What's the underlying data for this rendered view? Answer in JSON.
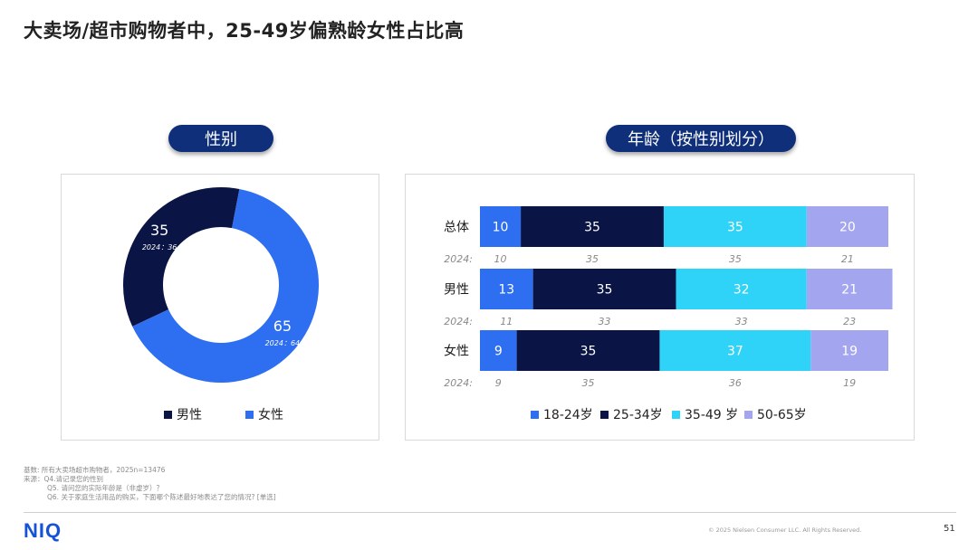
{
  "page": {
    "title": "大卖场/超市购物者中，25-49岁偏熟龄女性占比高",
    "page_number": "51",
    "logo": "NIQ",
    "copyright": "© 2025 Nielsen Consumer LLC. All Rights Reserved."
  },
  "footnotes": {
    "base": "基数: 所有大卖场超市购物者，2025n=13476",
    "source": "来源：Q4.请记录您的性别",
    "q5": "Q5. 请问您的实际年龄是（非虚岁）？",
    "q6": "Q6. 关于家庭生活用品的购买，下面哪个陈述最好地表达了您的情况? [单选]"
  },
  "left_panel": {
    "header": "性别"
  },
  "right_panel": {
    "header": "年龄（按性别划分）"
  },
  "chart_data": [
    {
      "type": "pie",
      "variant": "donut",
      "title": "性别",
      "categories": [
        "男性",
        "女性"
      ],
      "values": [
        35,
        65
      ],
      "values_2024": [
        36,
        64
      ],
      "label_2024_prefix": "2024：",
      "colors": [
        "#0a1445",
        "#2e6ff2"
      ],
      "legend_position": "bottom"
    },
    {
      "type": "bar",
      "orientation": "horizontal",
      "stacked": true,
      "title": "年龄（按性别划分）",
      "categories": [
        "总体",
        "男性",
        "女性"
      ],
      "series": [
        {
          "name": "18-24岁",
          "values": [
            10,
            13,
            9
          ],
          "values_2024": [
            10,
            11,
            9
          ],
          "color": "#2e6ff2",
          "label_color": "#ffffff"
        },
        {
          "name": "25-34岁",
          "values": [
            35,
            35,
            35
          ],
          "values_2024": [
            35,
            33,
            35
          ],
          "color": "#0a1445",
          "label_color": "#ffffff"
        },
        {
          "name": "35-49 岁",
          "values": [
            35,
            32,
            37
          ],
          "values_2024": [
            35,
            33,
            36
          ],
          "color": "#2ed3f7",
          "label_color": "#ffffff"
        },
        {
          "name": "50-65岁",
          "values": [
            20,
            21,
            19
          ],
          "values_2024": [
            21,
            23,
            19
          ],
          "color": "#a3a6ef",
          "label_color": "#ffffff"
        }
      ],
      "row_2024_label": "2024:",
      "xlim": [
        0,
        100
      ],
      "legend_position": "bottom"
    }
  ]
}
